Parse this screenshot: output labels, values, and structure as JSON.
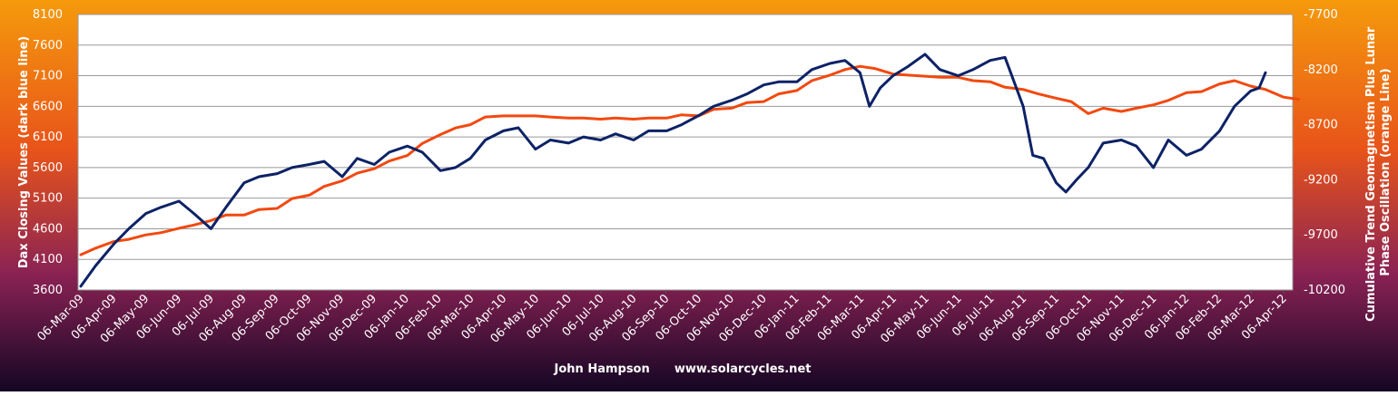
{
  "chart_data": {
    "type": "line",
    "footer": "John Hampson      www.solarcycles.net",
    "ylabel_left": "Dax Closing  Values (dark blue line)",
    "ylabel_right": [
      "Cumulative  Trend Geomagnetism Plus Lunar",
      "Phase Oscillation  (orange Line)"
    ],
    "yleft_ticks": [
      "3600",
      "4100",
      "4600",
      "5100",
      "5600",
      "6100",
      "6600",
      "7100",
      "7600",
      "8100"
    ],
    "yright_ticks": [
      "-7700",
      "-8200",
      "-8700",
      "-9200",
      "-9700",
      "-10200"
    ],
    "x_ticks": [
      "06-Mar-09",
      "06-Apr-09",
      "06-May-09",
      "06-Jun-09",
      "06-Jul-09",
      "06-Aug-09",
      "06-Sep-09",
      "06-Oct-09",
      "06-Nov-09",
      "06-Dec-09",
      "06-Jan-10",
      "06-Feb-10",
      "06-Mar-10",
      "06-Apr-10",
      "06-May-10",
      "06-Jun-10",
      "06-Jul-10",
      "06-Aug-10",
      "06-Sep-10",
      "06-Oct-10",
      "06-Nov-10",
      "06-Dec-10",
      "06-Jan-11",
      "06-Feb-11",
      "06-Mar-11",
      "06-Apr-11",
      "06-May-11",
      "06-Jun-11",
      "06-Jul-11",
      "06-Aug-11",
      "06-Sep-11",
      "06-Oct-11",
      "06-Nov-11",
      "06-Dec-11",
      "06-Jan-12",
      "06-Feb-12",
      "06-Mar-12",
      "06-Apr-12"
    ],
    "yleft_lim": [
      3600,
      8100
    ],
    "yright_lim": [
      -10200,
      -7700
    ],
    "grid": true,
    "series": [
      {
        "axis": "left",
        "color": "#0d2266",
        "x": [
          "2009-03-06",
          "2009-03-20",
          "2009-04-06",
          "2009-04-20",
          "2009-05-06",
          "2009-05-20",
          "2009-06-06",
          "2009-06-20",
          "2009-07-06",
          "2009-07-20",
          "2009-08-06",
          "2009-08-20",
          "2009-09-06",
          "2009-09-20",
          "2009-10-06",
          "2009-10-20",
          "2009-11-06",
          "2009-11-20",
          "2009-12-06",
          "2009-12-20",
          "2010-01-06",
          "2010-01-20",
          "2010-02-06",
          "2010-02-20",
          "2010-03-06",
          "2010-03-20",
          "2010-04-06",
          "2010-04-20",
          "2010-05-06",
          "2010-05-20",
          "2010-06-06",
          "2010-06-20",
          "2010-07-06",
          "2010-07-20",
          "2010-08-06",
          "2010-08-20",
          "2010-09-06",
          "2010-09-20",
          "2010-10-06",
          "2010-10-20",
          "2010-11-06",
          "2010-11-20",
          "2010-12-06",
          "2010-12-20",
          "2011-01-06",
          "2011-01-20",
          "2011-02-06",
          "2011-02-20",
          "2011-03-06",
          "2011-03-15",
          "2011-03-25",
          "2011-04-06",
          "2011-04-20",
          "2011-05-06",
          "2011-05-20",
          "2011-06-06",
          "2011-06-20",
          "2011-07-06",
          "2011-07-20",
          "2011-08-06",
          "2011-08-15",
          "2011-08-25",
          "2011-09-06",
          "2011-09-15",
          "2011-09-25",
          "2011-10-06",
          "2011-10-20",
          "2011-11-06",
          "2011-11-20",
          "2011-12-06",
          "2011-12-20",
          "2012-01-06",
          "2012-01-20",
          "2012-02-06",
          "2012-02-20",
          "2012-03-06",
          "2012-03-14",
          "2012-03-20"
        ],
        "values": [
          3660,
          4000,
          4350,
          4600,
          4850,
          4950,
          5050,
          4850,
          4600,
          4950,
          5350,
          5450,
          5500,
          5600,
          5650,
          5700,
          5450,
          5750,
          5650,
          5850,
          5950,
          5850,
          5550,
          5600,
          5750,
          6050,
          6200,
          6250,
          5900,
          6050,
          6000,
          6100,
          6050,
          6150,
          6050,
          6200,
          6200,
          6300,
          6450,
          6600,
          6700,
          6800,
          6950,
          7000,
          7000,
          7200,
          7300,
          7350,
          7150,
          6600,
          6900,
          7100,
          7250,
          7450,
          7200,
          7100,
          7200,
          7350,
          7400,
          6600,
          5800,
          5750,
          5350,
          5200,
          5400,
          5600,
          6000,
          6050,
          5950,
          5600,
          6050,
          5800,
          5900,
          6200,
          6600,
          6850,
          6900,
          7150
        ]
      },
      {
        "axis": "right",
        "color": "#f2490f",
        "x": [
          "2009-03-06",
          "2009-03-20",
          "2009-04-06",
          "2009-04-20",
          "2009-05-06",
          "2009-05-20",
          "2009-06-06",
          "2009-06-20",
          "2009-07-06",
          "2009-07-20",
          "2009-08-06",
          "2009-08-20",
          "2009-09-06",
          "2009-09-20",
          "2009-10-06",
          "2009-10-20",
          "2009-11-06",
          "2009-11-20",
          "2009-12-06",
          "2009-12-20",
          "2010-01-06",
          "2010-01-20",
          "2010-02-06",
          "2010-02-20",
          "2010-03-06",
          "2010-03-20",
          "2010-04-06",
          "2010-04-20",
          "2010-05-06",
          "2010-05-20",
          "2010-06-06",
          "2010-06-20",
          "2010-07-06",
          "2010-07-20",
          "2010-08-06",
          "2010-08-20",
          "2010-09-06",
          "2010-09-20",
          "2010-10-06",
          "2010-10-20",
          "2010-11-06",
          "2010-11-20",
          "2010-12-06",
          "2010-12-20",
          "2011-01-06",
          "2011-01-20",
          "2011-02-06",
          "2011-02-20",
          "2011-03-06",
          "2011-03-20",
          "2011-04-06",
          "2011-04-20",
          "2011-05-06",
          "2011-05-20",
          "2011-06-06",
          "2011-06-20",
          "2011-07-06",
          "2011-07-20",
          "2011-08-06",
          "2011-08-20",
          "2011-09-06",
          "2011-09-20",
          "2011-10-06",
          "2011-10-20",
          "2011-11-06",
          "2011-11-20",
          "2011-12-06",
          "2011-12-20",
          "2012-01-06",
          "2012-01-20",
          "2012-02-06",
          "2012-02-20",
          "2012-03-06",
          "2012-03-20",
          "2012-04-06",
          "2012-04-20"
        ],
        "values": [
          -9880,
          -9820,
          -9760,
          -9740,
          -9700,
          -9680,
          -9640,
          -9610,
          -9570,
          -9520,
          -9520,
          -9470,
          -9460,
          -9370,
          -9340,
          -9260,
          -9210,
          -9140,
          -9100,
          -9030,
          -8980,
          -8870,
          -8790,
          -8730,
          -8700,
          -8630,
          -8620,
          -8620,
          -8620,
          -8630,
          -8640,
          -8640,
          -8650,
          -8640,
          -8650,
          -8640,
          -8640,
          -8610,
          -8620,
          -8560,
          -8550,
          -8500,
          -8490,
          -8420,
          -8390,
          -8300,
          -8250,
          -8200,
          -8170,
          -8190,
          -8240,
          -8250,
          -8260,
          -8270,
          -8270,
          -8300,
          -8310,
          -8360,
          -8380,
          -8420,
          -8460,
          -8490,
          -8600,
          -8550,
          -8580,
          -8550,
          -8520,
          -8480,
          -8410,
          -8400,
          -8330,
          -8300,
          -8350,
          -8380,
          -8450,
          -8470
        ]
      }
    ]
  }
}
